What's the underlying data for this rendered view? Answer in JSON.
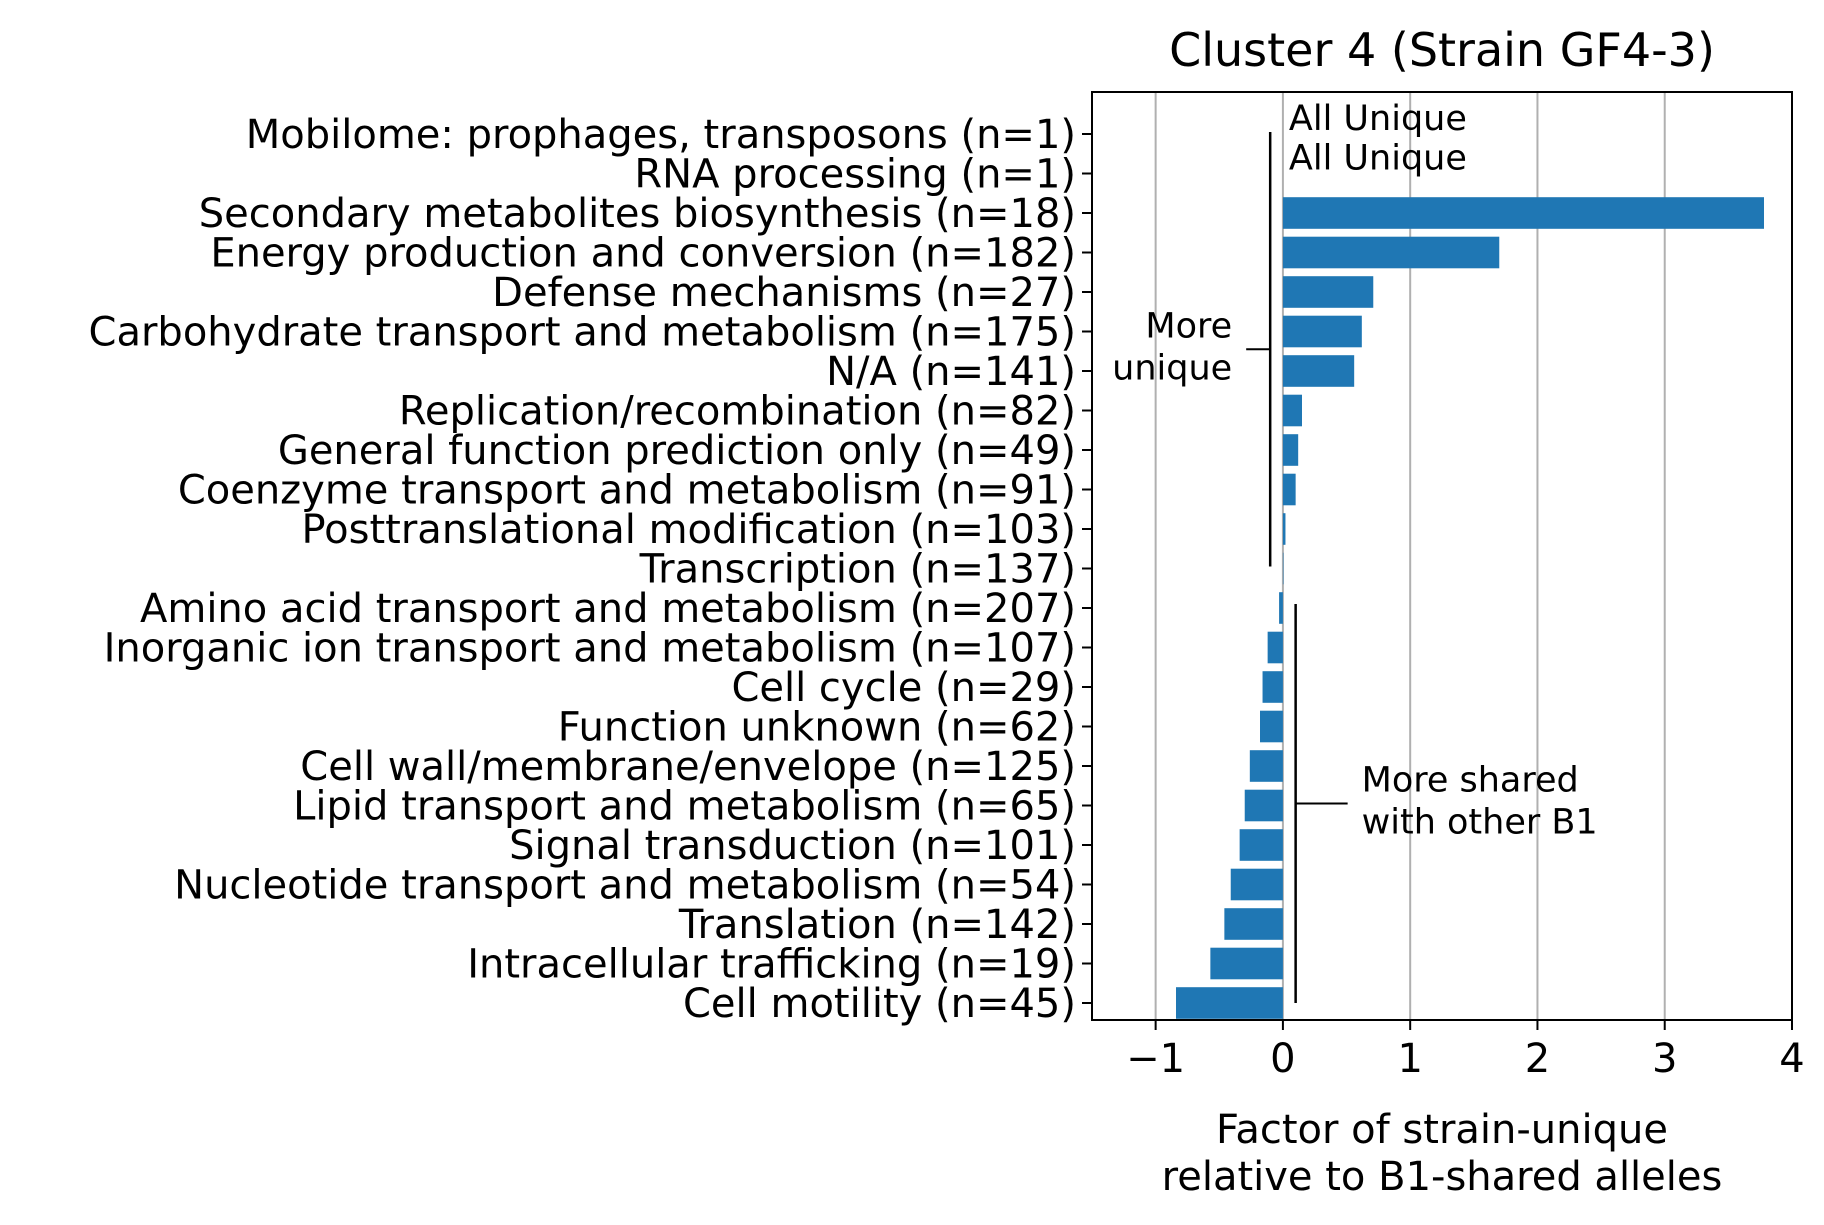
{
  "chart_data": {
    "type": "bar",
    "orientation": "horizontal",
    "title": "Cluster 4 (Strain GF4-3)",
    "xlabel": [
      "Factor of strain-unique",
      "relative to B1-shared alleles"
    ],
    "ylabel": "",
    "xlim": [
      -1.5,
      4.0
    ],
    "xticks": [
      -1,
      0,
      1,
      2,
      3,
      4
    ],
    "xtick_labels": [
      "−1",
      "0",
      "1",
      "2",
      "3",
      "4"
    ],
    "grid": "x",
    "bar_color": "#1f77b4",
    "categories": [
      "Mobilome: prophages, transposons (n=1)",
      "RNA processing (n=1)",
      "Secondary metabolites biosynthesis (n=18)",
      "Energy production and conversion (n=182)",
      "Defense mechanisms (n=27)",
      "Carbohydrate transport and metabolism (n=175)",
      "N/A (n=141)",
      "Replication/recombination (n=82)",
      "General function prediction only (n=49)",
      "Coenzyme transport and metabolism (n=91)",
      "Posttranslational modification (n=103)",
      "Transcription (n=137)",
      "Amino acid transport and metabolism (n=207)",
      "Inorganic ion transport and metabolism (n=107)",
      "Cell cycle (n=29)",
      "Function unknown (n=62)",
      "Cell wall/membrane/envelope (n=125)",
      "Lipid transport and metabolism (n=65)",
      "Signal transduction (n=101)",
      "Nucleotide transport and metabolism (n=54)",
      "Translation (n=142)",
      "Intracellular trafficking (n=19)",
      "Cell motility (n=45)"
    ],
    "values": [
      null,
      null,
      3.78,
      1.7,
      0.71,
      0.62,
      0.56,
      0.15,
      0.12,
      0.1,
      0.02,
      0.0,
      -0.03,
      -0.12,
      -0.16,
      -0.18,
      -0.26,
      -0.3,
      -0.34,
      -0.41,
      -0.46,
      -0.57,
      -0.84
    ],
    "bar_annotations": [
      {
        "category_index": 0,
        "text": "All Unique"
      },
      {
        "category_index": 1,
        "text": "All Unique"
      }
    ],
    "bracket_annotations": [
      {
        "text": [
          "More",
          "unique"
        ],
        "from_index": 0,
        "to_index": 11,
        "side": "left"
      },
      {
        "text": [
          "More shared",
          "with other B1"
        ],
        "from_index": 12,
        "to_index": 22,
        "side": "right"
      }
    ]
  }
}
